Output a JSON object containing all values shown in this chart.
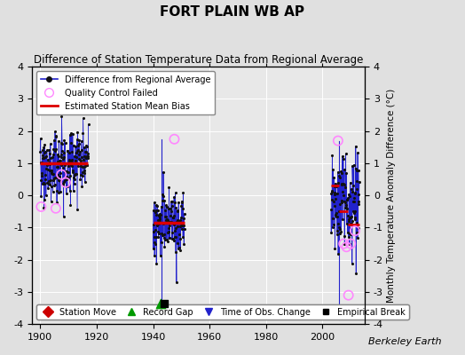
{
  "title": "FORT PLAIN WB AP",
  "subtitle": "Difference of Station Temperature Data from Regional Average",
  "ylabel": "Monthly Temperature Anomaly Difference (°C)",
  "xlabel_note": "Berkeley Earth",
  "xlim": [
    1897,
    2015
  ],
  "ylim": [
    -4,
    4
  ],
  "yticks": [
    -4,
    -3,
    -2,
    -1,
    0,
    1,
    2,
    3,
    4
  ],
  "xticks": [
    1900,
    1920,
    1940,
    1960,
    1980,
    2000
  ],
  "background_color": "#e0e0e0",
  "plot_bg_color": "#e8e8e8",
  "seg1_x_start": 1900,
  "seg1_x_end": 1917,
  "seg1_mean": 1.0,
  "seg1_std": 0.55,
  "seg1_n": 200,
  "seg1_bias": 1.0,
  "seg2_x_start": 1940,
  "seg2_x_end": 1951,
  "seg2_mean": -0.85,
  "seg2_std": 0.5,
  "seg2_n": 130,
  "seg2_bias": -0.85,
  "seg3_x_start": 2003,
  "seg3_x_end": 2013,
  "seg3_mean": -0.3,
  "seg3_std": 0.75,
  "seg3_n": 120,
  "seg3_bias": -0.3,
  "seg3_subseg_starts": [
    2003,
    2006,
    2009
  ],
  "seg3_subseg_ends": [
    2006,
    2009,
    2013
  ],
  "seg3_subseg_biases": [
    0.3,
    -0.5,
    -0.9
  ],
  "qc_points_seg1": [
    [
      1900.3,
      -0.35
    ],
    [
      1905.5,
      -0.4
    ],
    [
      1907.5,
      0.65
    ],
    [
      1909.0,
      0.4
    ]
  ],
  "qc_points_seg2": [
    [
      1947.5,
      1.75
    ]
  ],
  "qc_points_seg3": [
    [
      2005.5,
      1.7
    ],
    [
      2007.5,
      -1.5
    ],
    [
      2008.5,
      -1.6
    ],
    [
      2009.2,
      -3.1
    ],
    [
      2010.0,
      -1.5
    ],
    [
      2011.5,
      -1.1
    ]
  ],
  "vline1_x": 1943,
  "vline1_ytop": 1.75,
  "vline1_ybot": -3.8,
  "vline2_x": 2005.8,
  "vline2_ytop": 1.7,
  "vline2_ybot": -3.85,
  "record_gap_x": 1942.5,
  "record_gap_y": -3.35,
  "empirical_break_x": 1944.0,
  "empirical_break_y": -3.35,
  "line_color": "#2222cc",
  "bias_color": "#dd0000",
  "qc_edge_color": "#ff88ff",
  "marker_color": "#111111",
  "grid_color": "#ffffff"
}
